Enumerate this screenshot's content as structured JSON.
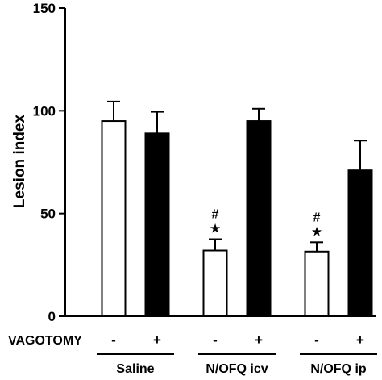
{
  "chart_data": {
    "type": "bar",
    "ylabel": "Lesion index",
    "ylim": [
      0,
      150
    ],
    "yticks": [
      "0",
      "50",
      "100",
      "150"
    ],
    "groups": [
      "Saline",
      "N/OFQ icv",
      "N/OFQ ip"
    ],
    "row_label": "VAGOTOMY",
    "vagotomy_signs": [
      "-",
      "+"
    ],
    "series": [
      {
        "vagotomy": "-",
        "fill": "#ffffff",
        "values": [
          95,
          32,
          31.5
        ],
        "errors": [
          9.5,
          5.5,
          4.5
        ]
      },
      {
        "vagotomy": "+",
        "fill": "#000000",
        "values": [
          89,
          95,
          71
        ],
        "errors": [
          10.5,
          6,
          14.5
        ]
      }
    ],
    "annotations": [
      {
        "group": "N/OFQ icv",
        "series_index": 0,
        "symbols": [
          "#",
          "★"
        ]
      },
      {
        "group": "N/OFQ ip",
        "series_index": 0,
        "symbols": [
          "#",
          "★"
        ]
      }
    ],
    "grid": false,
    "legend": "none"
  }
}
